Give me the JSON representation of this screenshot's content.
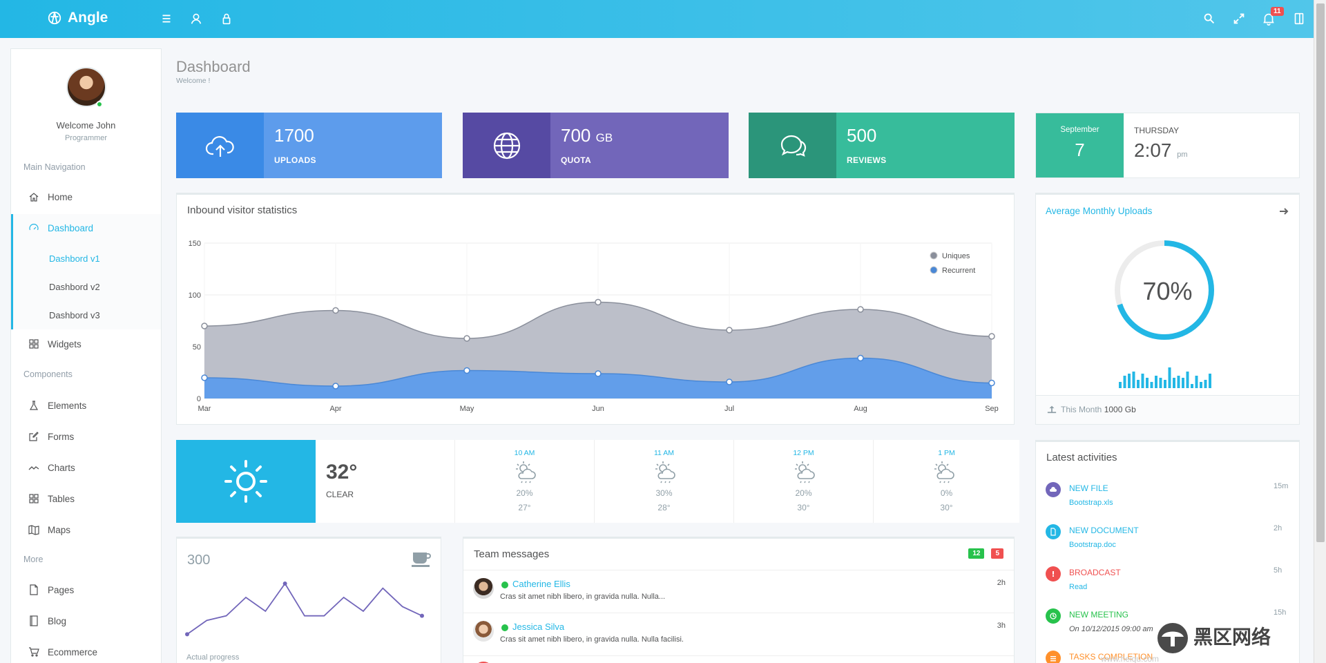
{
  "brand": {
    "name": "Angle"
  },
  "topbar": {
    "notifications_count": "11"
  },
  "sidebar": {
    "welcome": "Welcome John",
    "role": "Programmer",
    "heads": {
      "main": "Main Navigation",
      "components": "Components",
      "more": "More"
    },
    "items": {
      "home": "Home",
      "dashboard": "Dashboard",
      "widgets": "Widgets",
      "elements": "Elements",
      "forms": "Forms",
      "charts": "Charts",
      "tables": "Tables",
      "maps": "Maps",
      "pages": "Pages",
      "blog": "Blog",
      "ecommerce": "Ecommerce"
    },
    "sub": [
      "Dashbord v1",
      "Dashbord v2",
      "Dashbord v3"
    ]
  },
  "header": {
    "title": "Dashboard",
    "subtitle": "Welcome !"
  },
  "stats": [
    {
      "value": "1700",
      "unit": "",
      "label": "UPLOADS",
      "color": "#5d9cec",
      "icon_color": "#3a8ae6",
      "icon": "cloud-upload-icon"
    },
    {
      "value": "700",
      "unit": "GB",
      "label": "QUOTA",
      "color": "#7266ba",
      "icon_color": "#564aa3",
      "icon": "globe-icon"
    },
    {
      "value": "500",
      "unit": "",
      "label": "REVIEWS",
      "color": "#37bc9b",
      "icon_color": "#2b957a",
      "icon": "comments-icon"
    }
  ],
  "date_tile": {
    "month": "September",
    "day": "7",
    "weekday": "THURSDAY",
    "time": "2:07",
    "ampm": "pm"
  },
  "visitor_chart_panel": {
    "title": "Inbound visitor statistics"
  },
  "chart_data": {
    "type": "area",
    "categories": [
      "Mar",
      "Apr",
      "May",
      "Jun",
      "Jul",
      "Aug",
      "Sep"
    ],
    "ylim": [
      0,
      150
    ],
    "yticks": [
      0,
      50,
      100,
      150
    ],
    "series": [
      {
        "name": "Uniques",
        "values": [
          70,
          85,
          58,
          93,
          66,
          86,
          60
        ],
        "color": "#b8bcc6",
        "line": "#8a8f9b"
      },
      {
        "name": "Recurrent",
        "values": [
          20,
          12,
          27,
          24,
          16,
          39,
          15
        ],
        "color": "#5d9cec",
        "line": "#4a88d6"
      }
    ],
    "legend_position": "top-right",
    "grid": true
  },
  "avg_uploads": {
    "title": "Average Monthly Uploads",
    "percent_label": "70%",
    "percent": 0.7,
    "footer_label": "This Month",
    "footer_value": "1000 Gb",
    "sparkbars": [
      3,
      6,
      7,
      8,
      4,
      7,
      5,
      3,
      6,
      5,
      4,
      10,
      5,
      6,
      5,
      8,
      2,
      6,
      3,
      4,
      7
    ]
  },
  "weather": {
    "temp": "32°",
    "condition": "CLEAR",
    "hours": [
      {
        "time": "10 AM",
        "precip": "20%",
        "temp": "27°"
      },
      {
        "time": "11 AM",
        "precip": "30%",
        "temp": "28°"
      },
      {
        "time": "12 PM",
        "precip": "20%",
        "temp": "30°"
      },
      {
        "time": "1 PM",
        "precip": "0%",
        "temp": "30°"
      }
    ]
  },
  "progress_panel": {
    "value": "300",
    "label": "Actual progress",
    "points": [
      1,
      4,
      5,
      9,
      6,
      12,
      5,
      5,
      9,
      6,
      11,
      7,
      5
    ]
  },
  "team_messages": {
    "title": "Team messages",
    "badge_green": "12",
    "badge_red": "5",
    "messages": [
      {
        "name": "Catherine Ellis",
        "text": "Cras sit amet nibh libero, in gravida nulla. Nulla...",
        "time": "2h"
      },
      {
        "name": "Jessica Silva",
        "text": "Cras sit amet nibh libero, in gravida nulla. Nulla facilisi.",
        "time": "3h"
      }
    ]
  },
  "activities": {
    "title": "Latest activities",
    "items": [
      {
        "title": "NEW FILE",
        "sub": "Bootstrap.xls",
        "time": "15m",
        "color": "#7266ba",
        "title_color": "#23b7e5"
      },
      {
        "title": "NEW DOCUMENT",
        "sub": "Bootstrap.doc",
        "time": "2h",
        "color": "#23b7e5",
        "title_color": "#23b7e5"
      },
      {
        "title": "BROADCAST",
        "sub": "Read",
        "time": "5h",
        "color": "#f05050",
        "title_color": "#f05050"
      },
      {
        "title": "NEW MEETING",
        "sub": "On 10/12/2015 09:00 am",
        "time": "15h",
        "color": "#27c24c",
        "title_color": "#27c24c"
      },
      {
        "title": "TASKS COMPLETION",
        "sub": "",
        "time": "",
        "color": "#ff902b",
        "title_color": "#ff902b"
      }
    ]
  },
  "watermark": {
    "text": "黑区网络",
    "url": "www.heiqu.com"
  }
}
